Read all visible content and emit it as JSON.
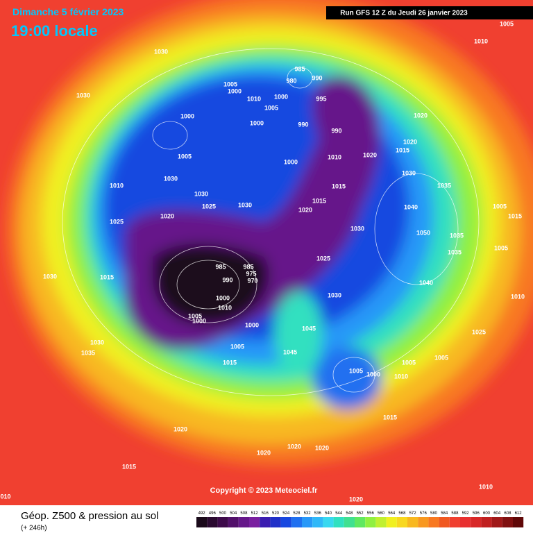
{
  "header": {
    "date": "Dimanche 5 février 2023",
    "time": "19:00 locale",
    "run": "Run GFS 12 Z du Jeudi 26 janvier 2023"
  },
  "copyright": "Copyright © 2023 Meteociel.fr",
  "legend": {
    "title": "Géop. Z500 & pression au sol",
    "lead": "(+ 246h)",
    "values": [
      492,
      496,
      500,
      504,
      508,
      512,
      516,
      520,
      524,
      528,
      532,
      536,
      540,
      544,
      548,
      552,
      556,
      560,
      564,
      568,
      572,
      576,
      580,
      584,
      588,
      592,
      596,
      600,
      604,
      608,
      612
    ],
    "colors": [
      "#1a0a1a",
      "#2a0a30",
      "#3d0a4a",
      "#52106a",
      "#66188a",
      "#7a20a0",
      "#3a1cb0",
      "#2030c8",
      "#1848e0",
      "#2070f0",
      "#2898f8",
      "#30b8f8",
      "#38d8f0",
      "#30e0c0",
      "#40e090",
      "#60e860",
      "#90f040",
      "#c0f030",
      "#f0f020",
      "#f8d820",
      "#f8b820",
      "#f89820",
      "#f87820",
      "#f05820",
      "#f04030",
      "#e83030",
      "#d82828",
      "#c02020",
      "#a01818",
      "#801010",
      "#600808"
    ]
  },
  "isobar_labels": [
    "1005",
    "1010",
    "1030",
    "1030",
    "985",
    "980",
    "990",
    "1005",
    "1000",
    "1010",
    "1000",
    "1005",
    "995",
    "1000",
    "1000",
    "990",
    "990",
    "1020",
    "1020",
    "1015",
    "1020",
    "1010",
    "1005",
    "1000",
    "1030",
    "1030",
    "1010",
    "1035",
    "1030",
    "1015",
    "1025",
    "1030",
    "1015",
    "1020",
    "1040",
    "1005",
    "1015",
    "1020",
    "1025",
    "1030",
    "1050",
    "1035",
    "985",
    "985",
    "975",
    "970",
    "990",
    "1025",
    "1005",
    "1035",
    "1030",
    "1015",
    "1040",
    "1010",
    "1000",
    "1010",
    "1005",
    "1000",
    "1030",
    "1000",
    "1045",
    "1025",
    "1030",
    "1005",
    "1035",
    "1045",
    "1005",
    "1005",
    "1015",
    "1005",
    "1000",
    "1010",
    "1015",
    "1020",
    "1020",
    "1020",
    "1020",
    "1015",
    "1010",
    "1020",
    "010"
  ]
}
